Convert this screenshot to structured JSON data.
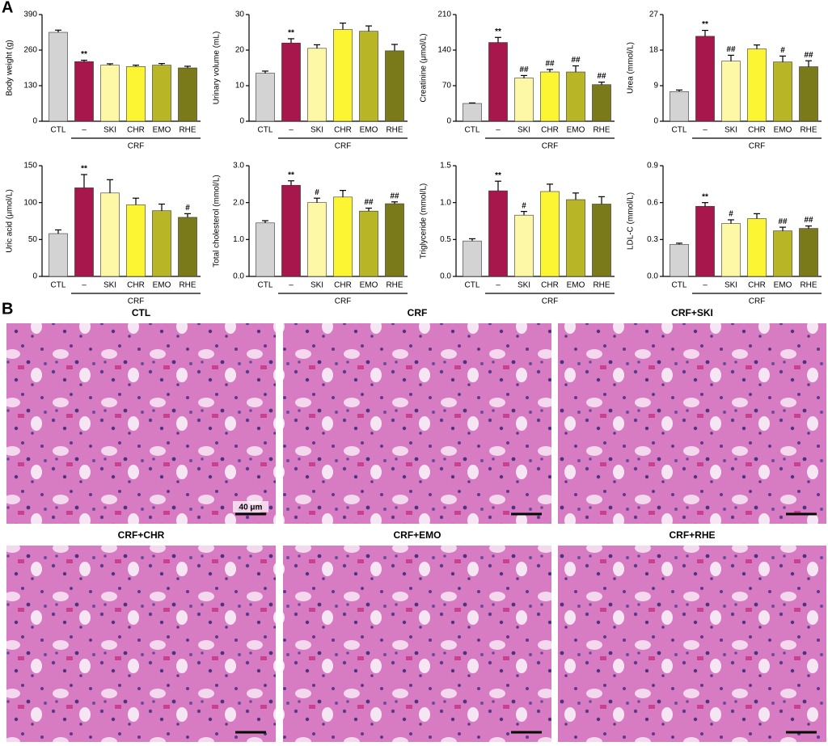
{
  "panel_labels": [
    "A",
    "B"
  ],
  "chart_data": [
    {
      "type": "bar",
      "ylabel": "Body weight (g)",
      "categories": [
        "CTL",
        "–",
        "SKI",
        "CHR",
        "EMO",
        "RHE"
      ],
      "group_label": "CRF",
      "values": [
        325,
        218,
        205,
        200,
        205,
        195
      ],
      "errors": [
        8,
        5,
        5,
        5,
        6,
        6
      ],
      "annotations": [
        null,
        "**",
        null,
        null,
        null,
        null
      ],
      "colors": [
        "#d3d3d3",
        "#a8174b",
        "#fdf8a6",
        "#fbf533",
        "#b8b526",
        "#7a7a1b"
      ],
      "ylim": [
        0,
        390
      ],
      "yticks": [
        0,
        130,
        260,
        390
      ]
    },
    {
      "type": "bar",
      "ylabel": "Urinary volume (mL)",
      "categories": [
        "CTL",
        "–",
        "SKI",
        "CHR",
        "EMO",
        "RHE"
      ],
      "group_label": "CRF",
      "values": [
        13.5,
        22,
        20.5,
        25.8,
        25.3,
        19.8
      ],
      "errors": [
        0.6,
        1.2,
        1,
        1.8,
        1.5,
        1.8
      ],
      "annotations": [
        null,
        "**",
        null,
        null,
        null,
        null
      ],
      "colors": [
        "#d3d3d3",
        "#a8174b",
        "#fdf8a6",
        "#fbf533",
        "#b8b526",
        "#7a7a1b"
      ],
      "ylim": [
        0,
        30
      ],
      "yticks": [
        0,
        10,
        20,
        30
      ]
    },
    {
      "type": "bar",
      "ylabel": "Creatinine (μmol/L)",
      "categories": [
        "CTL",
        "–",
        "SKI",
        "CHR",
        "EMO",
        "RHE"
      ],
      "group_label": "CRF",
      "values": [
        35,
        155,
        85,
        97,
        97,
        72
      ],
      "errors": [
        1,
        10,
        5,
        5,
        12,
        5
      ],
      "annotations": [
        null,
        "**",
        "##",
        "##",
        "##",
        "##"
      ],
      "colors": [
        "#d3d3d3",
        "#a8174b",
        "#fdf8a6",
        "#fbf533",
        "#b8b526",
        "#7a7a1b"
      ],
      "ylim": [
        0,
        210
      ],
      "yticks": [
        0,
        70,
        140,
        210
      ]
    },
    {
      "type": "bar",
      "ylabel": "Urea (mmol/L)",
      "categories": [
        "CTL",
        "–",
        "SKI",
        "CHR",
        "EMO",
        "RHE"
      ],
      "group_label": "CRF",
      "values": [
        7.5,
        21.5,
        15.2,
        18.3,
        15,
        13.8
      ],
      "errors": [
        0.4,
        1.5,
        1.5,
        1,
        1.5,
        1.5
      ],
      "annotations": [
        null,
        "**",
        "##",
        null,
        "#",
        "##"
      ],
      "colors": [
        "#d3d3d3",
        "#a8174b",
        "#fdf8a6",
        "#fbf533",
        "#b8b526",
        "#7a7a1b"
      ],
      "ylim": [
        0,
        27
      ],
      "yticks": [
        0,
        9,
        18,
        27
      ]
    },
    {
      "type": "bar",
      "ylabel": "Uric acid (μmol/L)",
      "categories": [
        "CTL",
        "–",
        "SKI",
        "CHR",
        "EMO",
        "RHE"
      ],
      "group_label": "CRF",
      "values": [
        58,
        120,
        113,
        97,
        89,
        80
      ],
      "errors": [
        5,
        18,
        18,
        9,
        9,
        5
      ],
      "annotations": [
        null,
        "**",
        null,
        null,
        null,
        "#"
      ],
      "colors": [
        "#d3d3d3",
        "#a8174b",
        "#fdf8a6",
        "#fbf533",
        "#b8b526",
        "#7a7a1b"
      ],
      "ylim": [
        0,
        150
      ],
      "yticks": [
        0,
        50,
        100,
        150
      ]
    },
    {
      "type": "bar",
      "ylabel": "Total cholesterol (mmol/L)",
      "categories": [
        "CTL",
        "–",
        "SKI",
        "CHR",
        "EMO",
        "RHE"
      ],
      "group_label": "CRF",
      "values": [
        1.45,
        2.47,
        2.0,
        2.15,
        1.77,
        1.97
      ],
      "errors": [
        0.06,
        0.12,
        0.12,
        0.18,
        0.08,
        0.05
      ],
      "annotations": [
        null,
        "**",
        "#",
        null,
        "##",
        "##"
      ],
      "colors": [
        "#d3d3d3",
        "#a8174b",
        "#fdf8a6",
        "#fbf533",
        "#b8b526",
        "#7a7a1b"
      ],
      "ylim": [
        0,
        3
      ],
      "yticks": [
        {
          "value": 0,
          "label": "0.0"
        },
        {
          "value": 1,
          "label": "1.0"
        },
        {
          "value": 2,
          "label": "2.0"
        },
        {
          "value": 3,
          "label": "3.0"
        }
      ]
    },
    {
      "type": "bar",
      "ylabel": "Triglyceride (mmol/L)",
      "categories": [
        "CTL",
        "–",
        "SKI",
        "CHR",
        "EMO",
        "RHE"
      ],
      "group_label": "CRF",
      "values": [
        0.48,
        1.16,
        0.83,
        1.15,
        1.04,
        0.98
      ],
      "errors": [
        0.03,
        0.13,
        0.05,
        0.1,
        0.09,
        0.1
      ],
      "annotations": [
        null,
        "**",
        "#",
        null,
        null,
        null
      ],
      "colors": [
        "#d3d3d3",
        "#a8174b",
        "#fdf8a6",
        "#fbf533",
        "#b8b526",
        "#7a7a1b"
      ],
      "ylim": [
        0,
        1.5
      ],
      "yticks": [
        {
          "value": 0,
          "label": "0.0"
        },
        0.5,
        {
          "value": 1,
          "label": "1.0"
        },
        1.5
      ]
    },
    {
      "type": "bar",
      "ylabel": "LDL-C (mmol/L)",
      "categories": [
        "CTL",
        "–",
        "SKI",
        "CHR",
        "EMO",
        "RHE"
      ],
      "group_label": "CRF",
      "values": [
        0.26,
        0.57,
        0.43,
        0.47,
        0.37,
        0.39
      ],
      "errors": [
        0.01,
        0.03,
        0.03,
        0.04,
        0.03,
        0.02
      ],
      "annotations": [
        null,
        "**",
        "#",
        null,
        "##",
        "##"
      ],
      "colors": [
        "#d3d3d3",
        "#a8174b",
        "#fdf8a6",
        "#fbf533",
        "#b8b526",
        "#7a7a1b"
      ],
      "ylim": [
        0,
        0.9
      ],
      "yticks": [
        {
          "value": 0,
          "label": "0.0"
        },
        0.3,
        0.6,
        0.9
      ]
    }
  ],
  "images": [
    {
      "title": "CTL"
    },
    {
      "title": "CRF"
    },
    {
      "title": "CRF+SKI"
    },
    {
      "title": "CRF+CHR"
    },
    {
      "title": "CRF+EMO"
    },
    {
      "title": "CRF+RHE"
    }
  ],
  "scale_bar": "40 μm"
}
